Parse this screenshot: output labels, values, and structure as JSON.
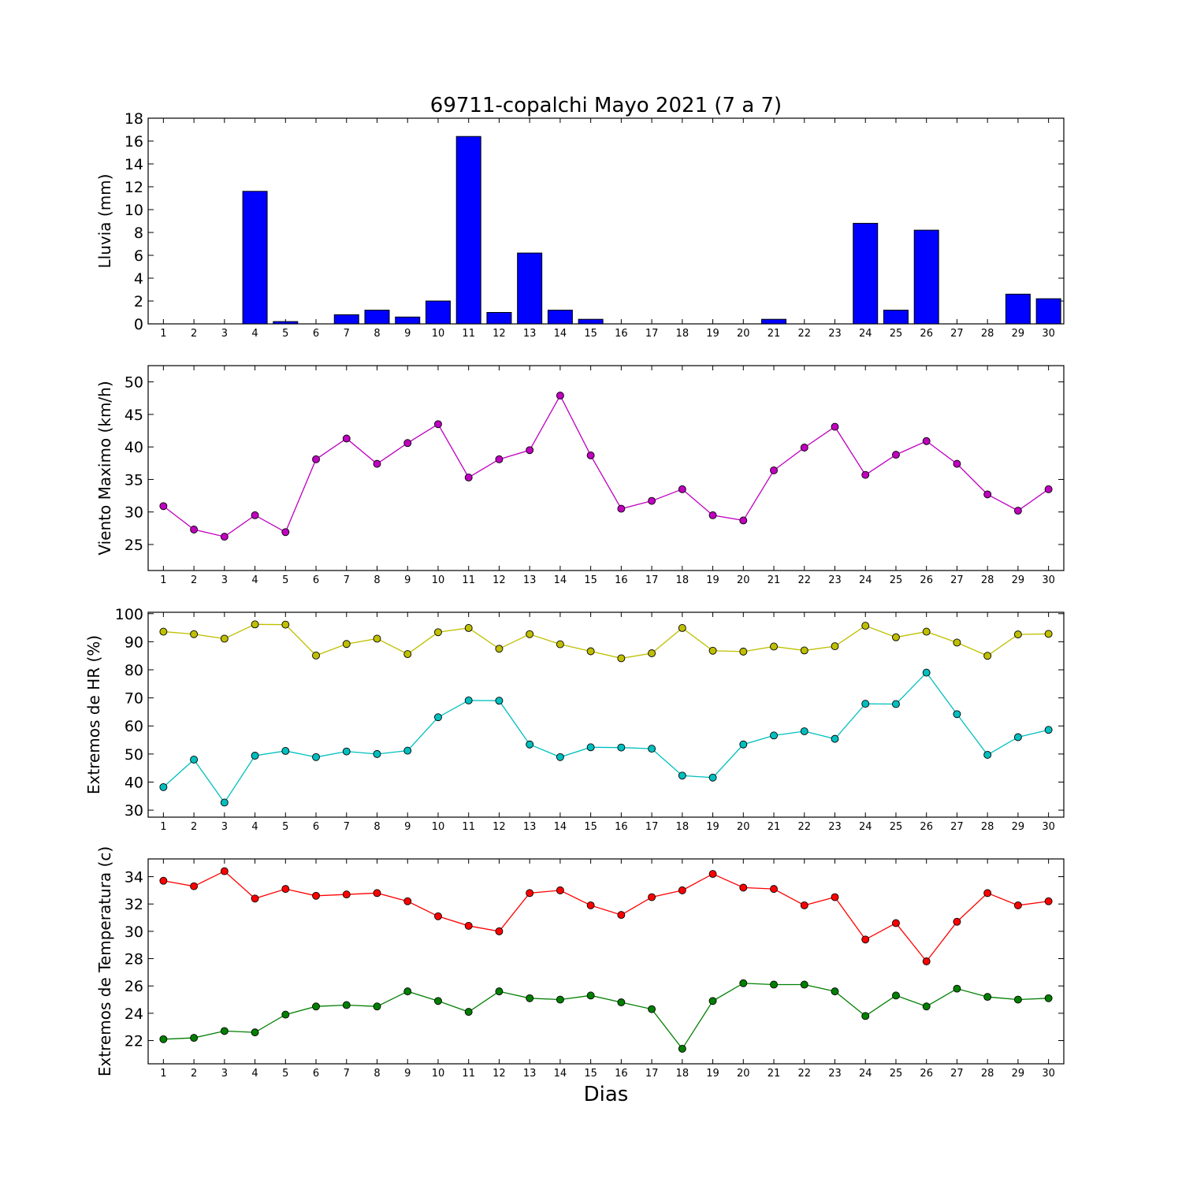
{
  "figure": {
    "title": "69711-copalchi Mayo 2021  (7 a 7)",
    "xlabel": "Dias"
  },
  "chart_data": [
    {
      "type": "bar",
      "ylabel": "Lluvia (mm)",
      "ylim": [
        0,
        18
      ],
      "yticks": [
        0,
        2,
        4,
        6,
        8,
        10,
        12,
        14,
        16,
        18
      ],
      "categories": [
        1,
        2,
        3,
        4,
        5,
        6,
        7,
        8,
        9,
        10,
        11,
        12,
        13,
        14,
        15,
        16,
        17,
        18,
        19,
        20,
        21,
        22,
        23,
        24,
        25,
        26,
        27,
        28,
        29,
        30
      ],
      "values": [
        0,
        0,
        0,
        11.6,
        0.2,
        0,
        0.8,
        1.2,
        0.6,
        2.0,
        16.4,
        1.0,
        6.2,
        1.2,
        0.4,
        0,
        0,
        0,
        0,
        0,
        0.4,
        0,
        0,
        8.8,
        1.2,
        8.2,
        0,
        0,
        2.6,
        2.2
      ],
      "color": "#0000ff"
    },
    {
      "type": "line",
      "ylabel": "Viento Maximo (km/h)",
      "ylim": [
        21,
        52.5
      ],
      "yticks": [
        25,
        30,
        35,
        40,
        45,
        50
      ],
      "x": [
        1,
        2,
        3,
        4,
        5,
        6,
        7,
        8,
        9,
        10,
        11,
        12,
        13,
        14,
        15,
        16,
        17,
        18,
        19,
        20,
        21,
        22,
        23,
        24,
        25,
        26,
        27,
        28,
        29,
        30
      ],
      "series": [
        {
          "color": "#bf00bf",
          "values": [
            30.9,
            27.3,
            26.2,
            29.5,
            26.9,
            38.1,
            41.3,
            37.4,
            40.6,
            43.5,
            35.3,
            38.1,
            39.5,
            47.9,
            38.7,
            30.5,
            31.7,
            33.5,
            29.5,
            28.7,
            36.4,
            39.9,
            43.1,
            35.7,
            38.8,
            40.9,
            37.4,
            32.7,
            30.2,
            33.5
          ]
        }
      ]
    },
    {
      "type": "line",
      "ylabel": "Extremos de HR (%)",
      "ylim": [
        27.5,
        100.5
      ],
      "yticks": [
        30,
        40,
        50,
        60,
        70,
        80,
        90,
        100
      ],
      "x": [
        1,
        2,
        3,
        4,
        5,
        6,
        7,
        8,
        9,
        10,
        11,
        12,
        13,
        14,
        15,
        16,
        17,
        18,
        19,
        20,
        21,
        22,
        23,
        24,
        25,
        26,
        27,
        28,
        29,
        30
      ],
      "series": [
        {
          "color": "#bfbf00",
          "values": [
            93.6,
            92.7,
            91.1,
            96.2,
            96.1,
            85.1,
            89.2,
            91.1,
            85.6,
            93.4,
            94.9,
            87.5,
            92.7,
            89.1,
            86.6,
            84.1,
            85.9,
            94.9,
            86.8,
            86.5,
            88.3,
            86.9,
            88.4,
            95.7,
            91.6,
            93.6,
            89.7,
            85.0,
            92.6,
            92.8
          ]
        },
        {
          "color": "#00bfbf",
          "values": [
            38.2,
            48.0,
            32.7,
            49.4,
            51.1,
            48.9,
            50.9,
            50.0,
            51.2,
            63.1,
            69.1,
            69.0,
            53.4,
            48.9,
            52.4,
            52.3,
            51.9,
            42.3,
            41.6,
            53.4,
            56.6,
            58.1,
            55.4,
            67.9,
            67.8,
            79.0,
            64.2,
            49.7,
            56.0,
            58.6
          ]
        }
      ]
    },
    {
      "type": "line",
      "ylabel": "Extremos de Temperatura (c)",
      "ylim": [
        20.3,
        35.3
      ],
      "yticks": [
        22,
        24,
        26,
        28,
        30,
        32,
        34
      ],
      "x": [
        1,
        2,
        3,
        4,
        5,
        6,
        7,
        8,
        9,
        10,
        11,
        12,
        13,
        14,
        15,
        16,
        17,
        18,
        19,
        20,
        21,
        22,
        23,
        24,
        25,
        26,
        27,
        28,
        29,
        30
      ],
      "series": [
        {
          "color": "#ff0000",
          "values": [
            33.7,
            33.3,
            34.4,
            32.4,
            33.1,
            32.6,
            32.7,
            32.8,
            32.2,
            31.1,
            30.4,
            30.0,
            32.8,
            33.0,
            31.9,
            31.2,
            32.5,
            33.0,
            34.2,
            33.2,
            33.1,
            31.9,
            32.5,
            29.4,
            30.6,
            27.8,
            30.7,
            32.8,
            31.9,
            32.2
          ]
        },
        {
          "color": "#007f00",
          "values": [
            22.1,
            22.2,
            22.7,
            22.6,
            23.9,
            24.5,
            24.6,
            24.5,
            25.6,
            24.9,
            24.1,
            25.6,
            25.1,
            25.0,
            25.3,
            24.8,
            24.3,
            21.4,
            24.9,
            26.2,
            26.1,
            26.1,
            25.6,
            23.8,
            25.3,
            24.5,
            25.8,
            25.2,
            25.0,
            25.1
          ]
        }
      ]
    }
  ]
}
